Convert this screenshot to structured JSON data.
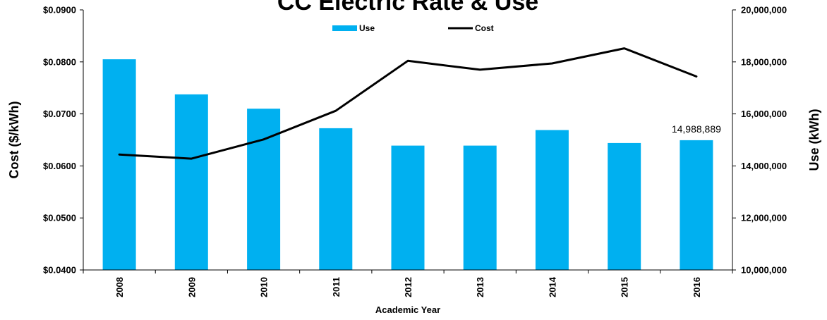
{
  "chart_data": {
    "type": "bar",
    "title": "CC Electric Rate & Use",
    "xlabel": "Academic Year",
    "ylabel_left": "Cost ($/kWh)",
    "ylabel_right": "Use (kWh)",
    "categories": [
      "2008",
      "2009",
      "2010",
      "2011",
      "2012",
      "2013",
      "2014",
      "2015",
      "2016"
    ],
    "left_axis": {
      "ylim": [
        0.04,
        0.09
      ],
      "ticks": [
        "$0.0400",
        "$0.0500",
        "$0.0600",
        "$0.0700",
        "$0.0800",
        "$0.0900"
      ],
      "tick_values": [
        0.04,
        0.05,
        0.06,
        0.07,
        0.08,
        0.09
      ]
    },
    "right_axis": {
      "ylim": [
        10000000,
        20000000
      ],
      "ticks": [
        "10,000,000",
        "12,000,000",
        "14,000,000",
        "16,000,000",
        "18,000,000",
        "20,000,000"
      ],
      "tick_values": [
        10000000,
        12000000,
        14000000,
        16000000,
        18000000,
        20000000
      ]
    },
    "series": [
      {
        "name": "Use",
        "type": "bar",
        "axis": "right",
        "color": "#00b0f0",
        "values": [
          18100000,
          16750000,
          16200000,
          15450000,
          14780000,
          14780000,
          15380000,
          14880000,
          14988889
        ]
      },
      {
        "name": "Cost",
        "type": "line",
        "axis": "left",
        "color": "#000000",
        "values": [
          0.0622,
          0.0614,
          0.0651,
          0.0706,
          0.0802,
          0.0785,
          0.0797,
          0.0826,
          0.0772
        ]
      }
    ],
    "annotations": [
      {
        "text": "14,988,889",
        "category": "2016",
        "series": "Use"
      }
    ],
    "legend": {
      "placement": "top-center",
      "entries": [
        "Use",
        "Cost"
      ]
    },
    "grid": false
  }
}
